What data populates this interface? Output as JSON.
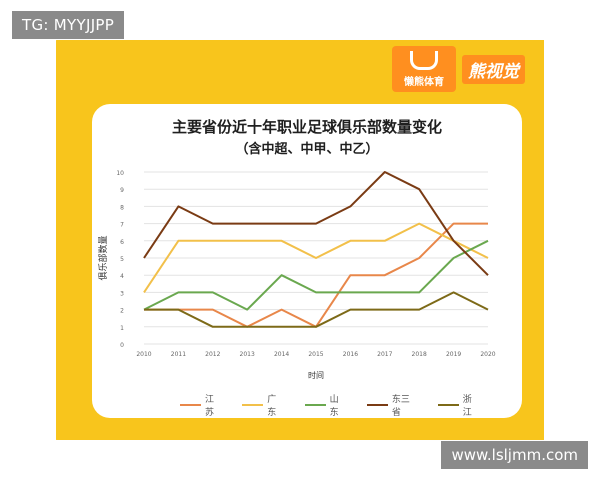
{
  "tags": {
    "top": "TG: MYYJJPP",
    "bottom": "www.lsljmm.com"
  },
  "logo": {
    "brand": "懒熊体育",
    "slogan": "熊视觉"
  },
  "colors": {
    "background": "#f8c51c",
    "江苏": "#e8874a",
    "广东": "#f2c04a",
    "山东": "#6aa84f",
    "东三省": "#7a3b14",
    "浙江": "#7d6a18"
  },
  "chart_data": {
    "type": "line",
    "title": "主要省份近十年职业足球俱乐部数量变化",
    "subtitle": "（含中超、中甲、中乙）",
    "xlabel": "时间",
    "ylabel": "俱乐部数量",
    "x": [
      2010,
      2011,
      2012,
      2013,
      2014,
      2015,
      2016,
      2017,
      2018,
      2019,
      2020
    ],
    "ylim": [
      0,
      10
    ],
    "yticks": [
      0,
      1,
      2,
      3,
      4,
      5,
      6,
      7,
      8,
      9,
      10
    ],
    "grid": true,
    "legend_position": "bottom",
    "series": [
      {
        "name": "江苏",
        "values": [
          2,
          2,
          2,
          1,
          2,
          1,
          4,
          4,
          5,
          7,
          7
        ]
      },
      {
        "name": "广东",
        "values": [
          3,
          6,
          6,
          6,
          6,
          5,
          6,
          6,
          7,
          6,
          5
        ]
      },
      {
        "name": "山东",
        "values": [
          2,
          3,
          3,
          2,
          4,
          3,
          3,
          3,
          3,
          5,
          6
        ]
      },
      {
        "name": "东三省",
        "values": [
          5,
          8,
          7,
          7,
          7,
          7,
          8,
          10,
          9,
          6,
          4
        ]
      },
      {
        "name": "浙江",
        "values": [
          2,
          2,
          1,
          1,
          1,
          1,
          2,
          2,
          2,
          3,
          2
        ]
      }
    ]
  }
}
